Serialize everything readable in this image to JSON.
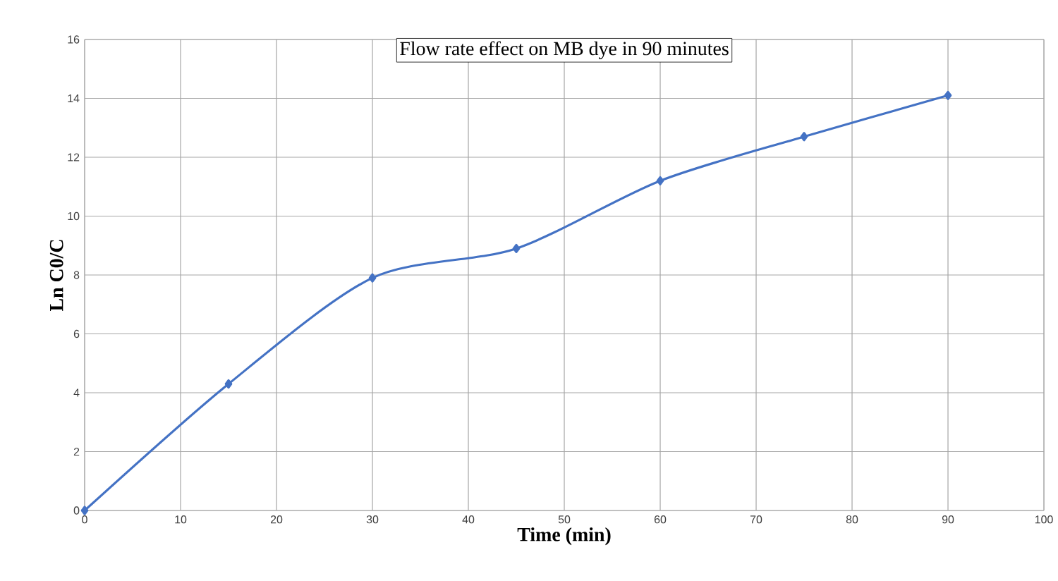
{
  "chart_data": {
    "type": "line",
    "title": "Flow rate effect on MB dye in 90 minutes",
    "xlabel": "Time (min)",
    "ylabel": "Ln C0/C",
    "x": [
      0,
      15,
      30,
      45,
      60,
      75,
      90
    ],
    "series": [
      {
        "color": "#4472c4",
        "values": [
          0,
          4.3,
          7.9,
          8.9,
          11.2,
          12.7,
          14.1
        ]
      }
    ],
    "xlim": [
      0,
      100
    ],
    "xticks": [
      0,
      10,
      20,
      30,
      40,
      50,
      60,
      70,
      80,
      90,
      100
    ],
    "ylim": [
      0,
      16
    ],
    "yticks": [
      0,
      2,
      4,
      6,
      8,
      10,
      12,
      14,
      16
    ],
    "grid": true,
    "marker": "diamond",
    "line_style": "solid"
  }
}
